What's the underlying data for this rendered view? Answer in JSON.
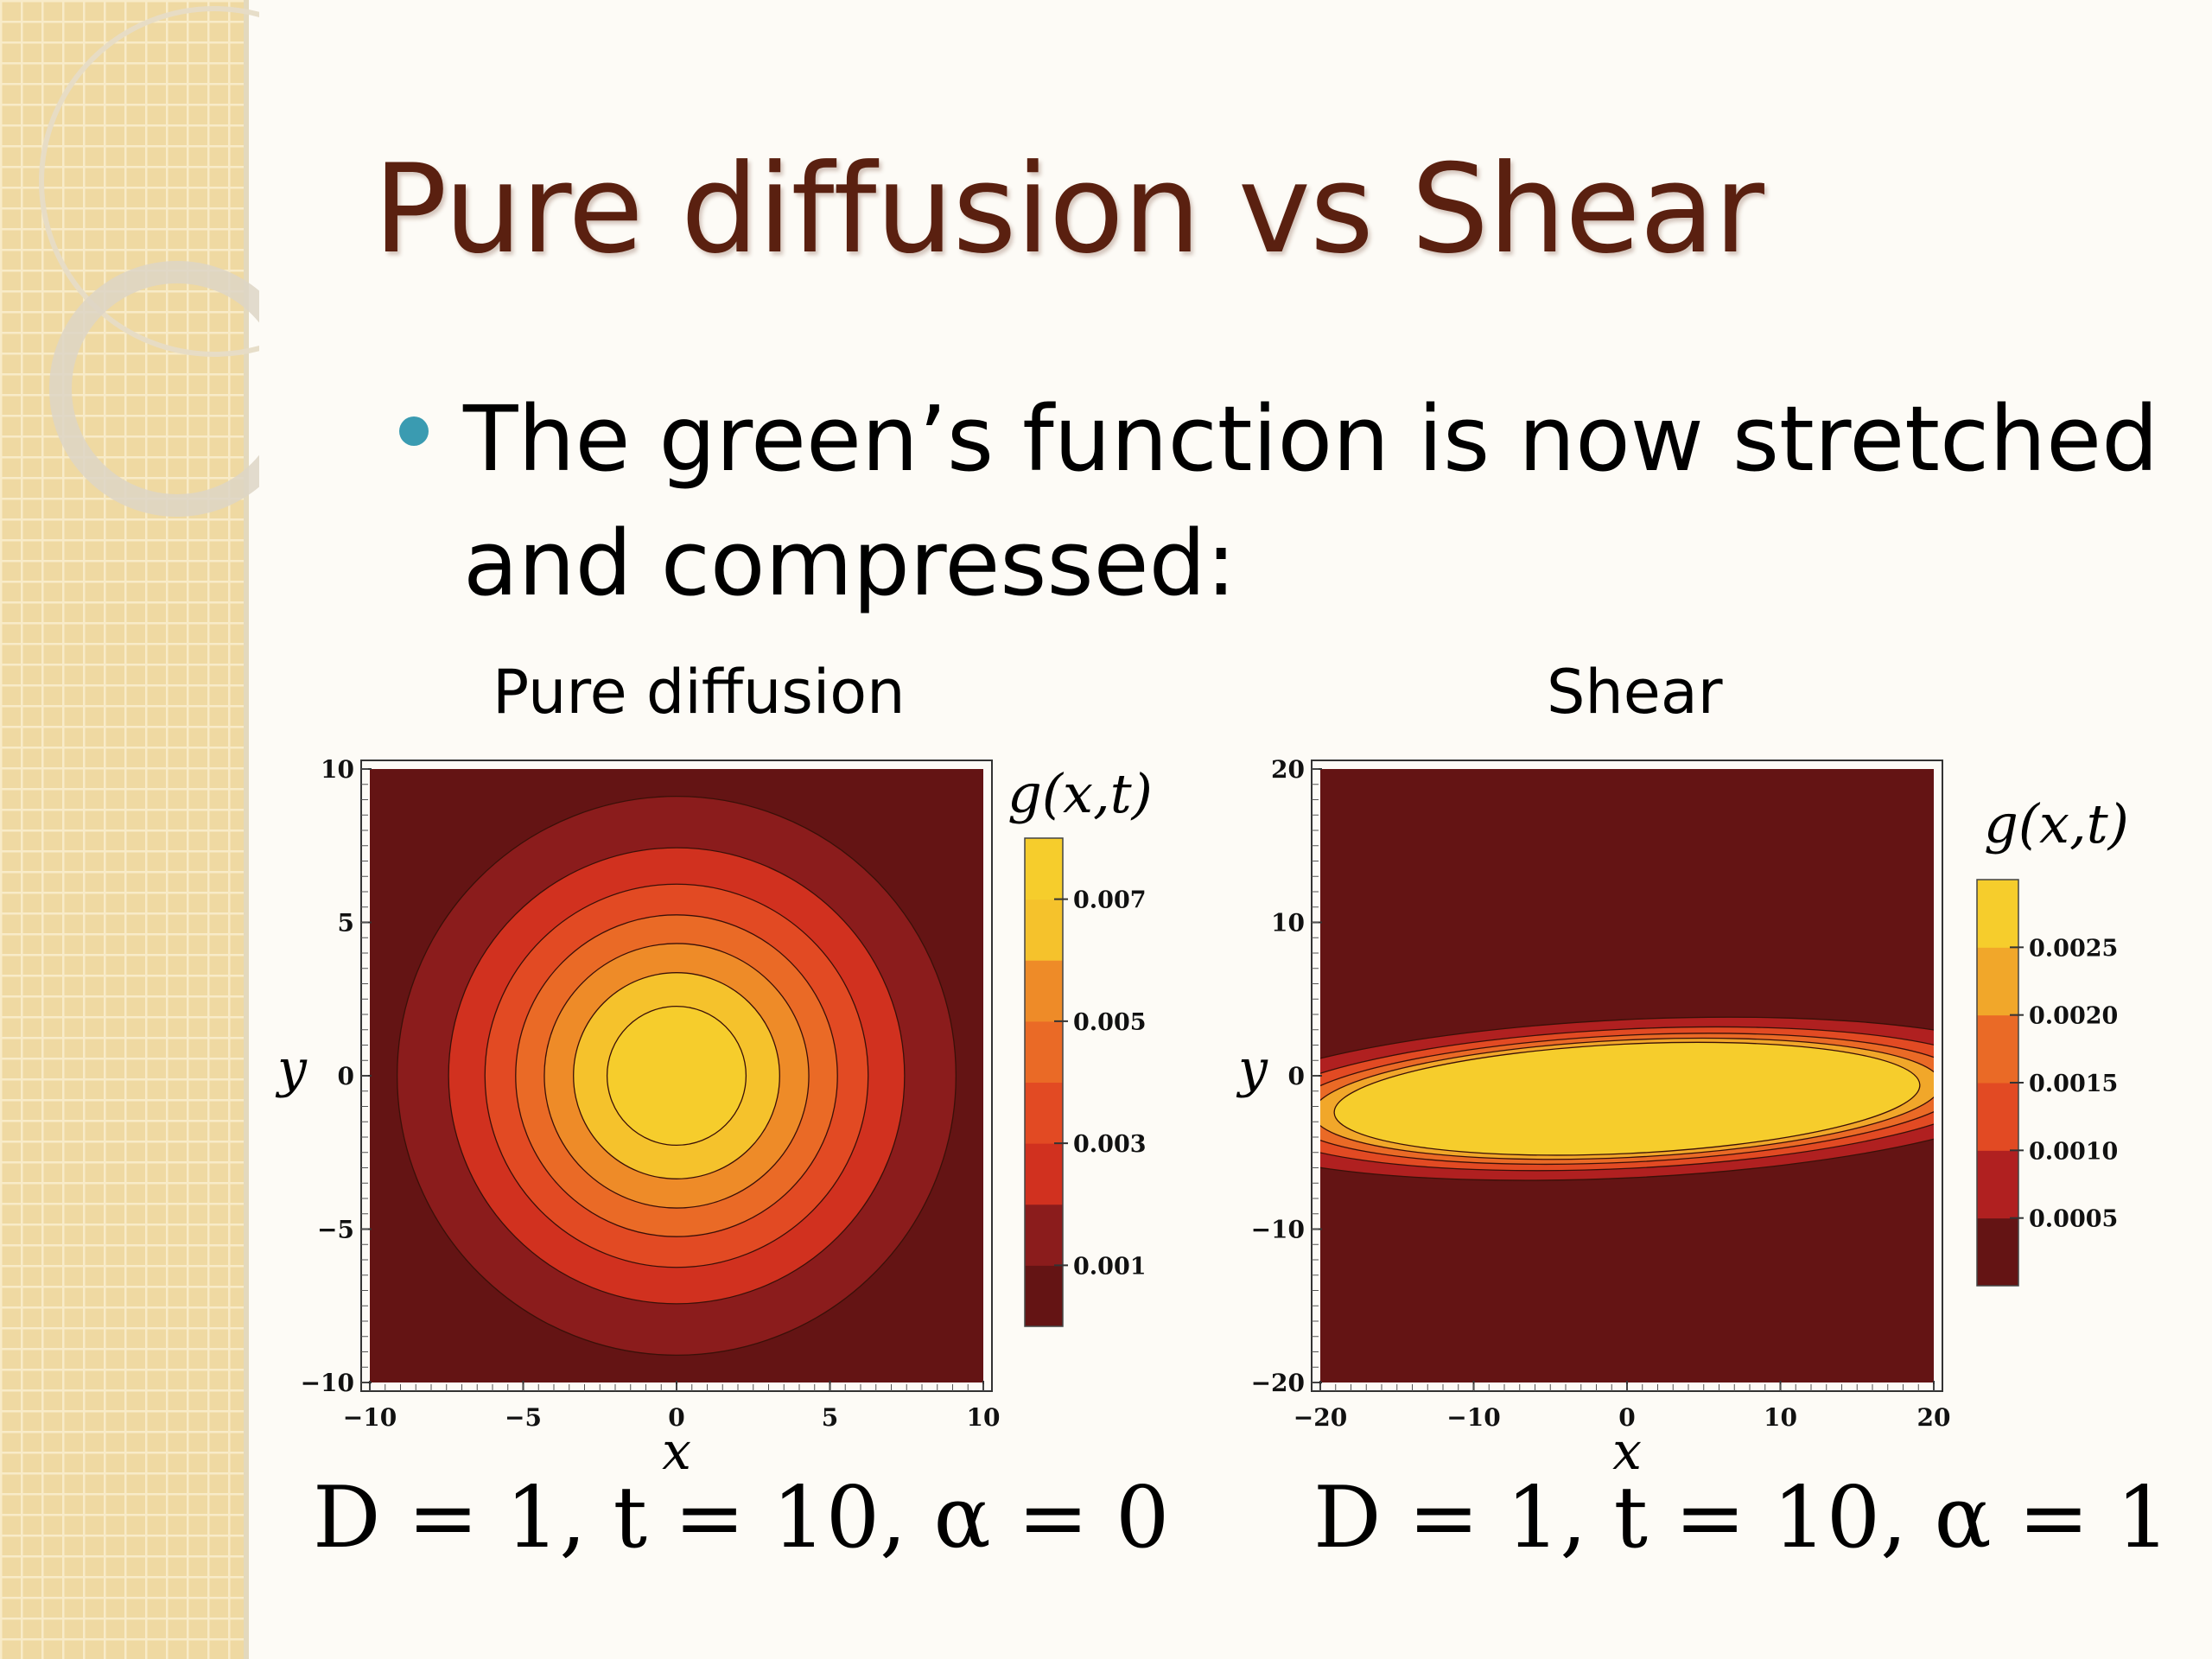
{
  "slide": {
    "title": "Pure diffusion vs Shear",
    "bullet": "The green’s function is now stretched and compressed:",
    "left_label": "Pure diffusion",
    "right_label": "Shear",
    "left_params": "D = 1, t = 10, α = 0",
    "right_params": "D = 1, t = 10, α = 1"
  },
  "colors": {
    "title": "#5a2010",
    "bullet": "#3a9bb1",
    "contour_levels": [
      "#641414",
      "#8b1c1c",
      "#b02020",
      "#d1311f",
      "#e24a23",
      "#ea6a26",
      "#ee8b28",
      "#f1a72a",
      "#f5c22c",
      "#f6cd2c"
    ]
  },
  "chart_data": [
    {
      "type": "contour",
      "title": "Pure diffusion",
      "xlabel": "x",
      "ylabel": "y",
      "colorbar_label": "g(x,t)",
      "xlim": [
        -10,
        10
      ],
      "ylim": [
        -10,
        10
      ],
      "xticks": [
        "−10",
        "−5",
        "0",
        "5",
        "10"
      ],
      "yticks": [
        "−10",
        "−5",
        "0",
        "5",
        "10"
      ],
      "colorbar_ticks": [
        "0.001",
        "0.003",
        "0.005",
        "0.007"
      ],
      "colorbar_range": [
        0,
        0.008
      ],
      "contour_levels": [
        0.001,
        0.002,
        0.003,
        0.004,
        0.005,
        0.006,
        0.007
      ],
      "params": {
        "D": 1,
        "t": 10,
        "alpha": 0
      }
    },
    {
      "type": "contour",
      "title": "Shear",
      "xlabel": "x",
      "ylabel": "y",
      "colorbar_label": "g(x,t)",
      "xlim": [
        -20,
        20
      ],
      "ylim": [
        -20,
        20
      ],
      "xticks": [
        "−20",
        "−10",
        "0",
        "10",
        "20"
      ],
      "yticks": [
        "−20",
        "−10",
        "0",
        "10",
        "20"
      ],
      "colorbar_ticks": [
        "0.0005",
        "0.0010",
        "0.0015",
        "0.0020",
        "0.0025"
      ],
      "colorbar_range": [
        0,
        0.003
      ],
      "contour_levels": [
        0.0005,
        0.001,
        0.0015,
        0.002,
        0.0025
      ],
      "params": {
        "D": 1,
        "t": 10,
        "alpha": 1
      }
    }
  ]
}
